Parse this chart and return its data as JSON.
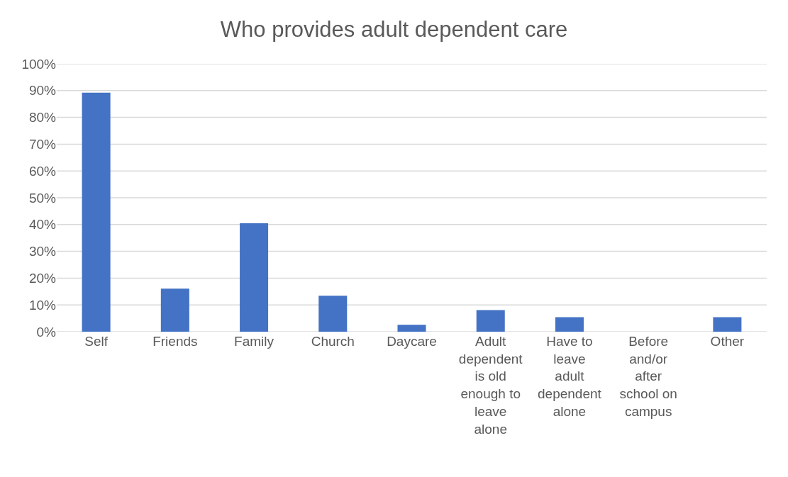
{
  "chart_data": {
    "type": "bar",
    "title": "Who provides adult dependent care",
    "categories": [
      "Self",
      "Friends",
      "Family",
      "Church",
      "Daycare",
      "Adult dependent is old enough to leave alone",
      "Have to leave adult dependent alone",
      "Before and/or after school on campus",
      "Other"
    ],
    "values": [
      89.2,
      16.1,
      40.5,
      13.4,
      2.6,
      8.1,
      5.4,
      0,
      5.4
    ],
    "color": "#4472c4",
    "ylim": [
      0,
      100
    ],
    "yticks": [
      {
        "value": 0,
        "label": "0%"
      },
      {
        "value": 10,
        "label": "10%"
      },
      {
        "value": 20,
        "label": "20%"
      },
      {
        "value": 30,
        "label": "30%"
      },
      {
        "value": 40,
        "label": "40%"
      },
      {
        "value": 50,
        "label": "50%"
      },
      {
        "value": 60,
        "label": "60%"
      },
      {
        "value": 70,
        "label": "70%"
      },
      {
        "value": 80,
        "label": "80%"
      },
      {
        "value": 90,
        "label": "90%"
      },
      {
        "value": 100,
        "label": "100%"
      }
    ],
    "grid": "y"
  }
}
